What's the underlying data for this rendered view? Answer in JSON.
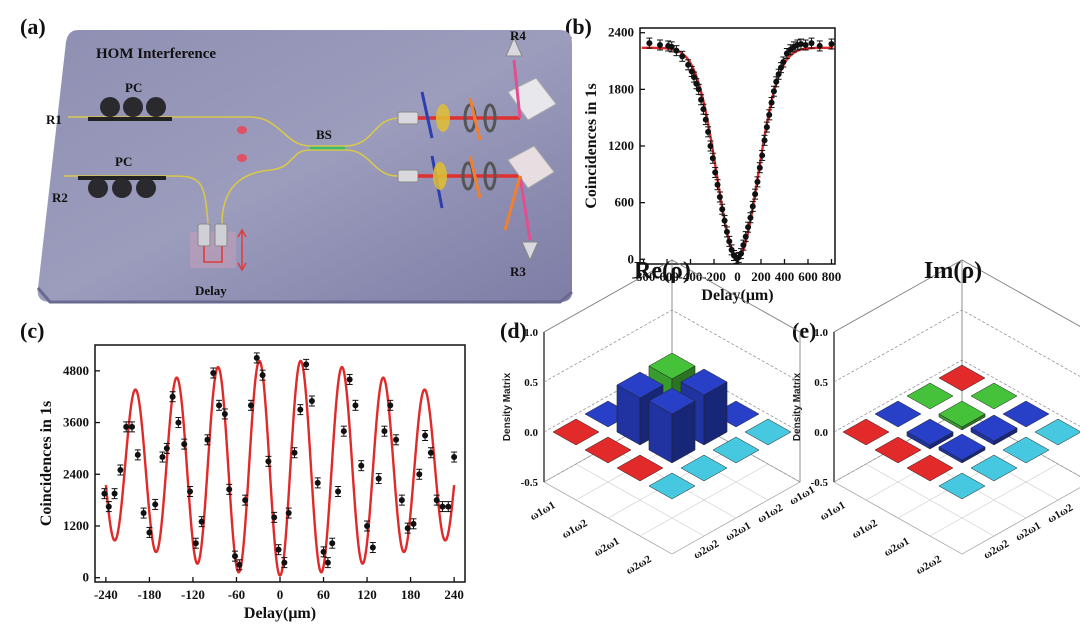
{
  "panels": {
    "a": {
      "label": "(a)",
      "title": "HOM Interference",
      "r1": "R1",
      "r2": "R2",
      "r3": "R3",
      "r4": "R4",
      "pc1": "PC",
      "pc2": "PC",
      "bs": "BS",
      "delay": "Delay"
    },
    "b": {
      "label": "(b)"
    },
    "c": {
      "label": "(c)"
    },
    "d": {
      "label": "(d)"
    },
    "e": {
      "label": "(e)"
    }
  },
  "chart_data": [
    {
      "id": "b",
      "type": "scatter",
      "title": "",
      "xlabel": "Delay(μm)",
      "ylabel": "Coincidences in 1s",
      "xlim": [
        -830,
        830
      ],
      "ylim": [
        -50,
        2450
      ],
      "xticks": [
        -800,
        -600,
        -400,
        -200,
        0,
        200,
        400,
        600,
        800
      ],
      "yticks": [
        0,
        600,
        1200,
        1800,
        2400
      ],
      "fit": {
        "type": "gaussian_dip",
        "baseline": 2240,
        "depth": 2230,
        "sigma": 175
      },
      "points": {
        "x": [
          -750,
          -660,
          -590,
          -560,
          -520,
          -470,
          -420,
          -390,
          -370,
          -350,
          -330,
          -310,
          -290,
          -270,
          -250,
          -230,
          -210,
          -190,
          -170,
          -150,
          -130,
          -110,
          -90,
          -70,
          -50,
          -30,
          -10,
          10,
          30,
          50,
          70,
          90,
          110,
          130,
          150,
          170,
          190,
          210,
          230,
          250,
          270,
          290,
          310,
          330,
          350,
          370,
          390,
          420,
          450,
          480,
          510,
          540,
          580,
          630,
          700,
          800
        ],
        "y": [
          2290,
          2270,
          2260,
          2250,
          2210,
          2150,
          2060,
          1990,
          1930,
          1860,
          1800,
          1690,
          1590,
          1480,
          1350,
          1200,
          1070,
          920,
          790,
          660,
          530,
          410,
          290,
          190,
          100,
          40,
          10,
          20,
          60,
          150,
          240,
          340,
          440,
          560,
          690,
          820,
          970,
          1100,
          1260,
          1400,
          1530,
          1660,
          1780,
          1880,
          1960,
          2030,
          2090,
          2180,
          2220,
          2250,
          2270,
          2280,
          2270,
          2290,
          2260,
          2280
        ]
      }
    },
    {
      "id": "c",
      "type": "scatter",
      "title": "",
      "xlabel": "Delay(μm)",
      "ylabel": "Coincidences in 1s",
      "xlim": [
        -255,
        255
      ],
      "ylim": [
        -100,
        5400
      ],
      "xticks": [
        -240,
        -180,
        -120,
        -60,
        0,
        60,
        120,
        180,
        240
      ],
      "yticks": [
        0,
        1200,
        2400,
        3600,
        4800
      ],
      "fit": {
        "type": "modulated_cosine",
        "mean": 2550,
        "period": 57
      },
      "points": {
        "x": [
          -242,
          -236,
          -228,
          -220,
          -212,
          -204,
          -196,
          -188,
          -180,
          -172,
          -162,
          -156,
          -148,
          -140,
          -132,
          -124,
          -116,
          -108,
          -100,
          -92,
          -84,
          -76,
          -70,
          -62,
          -56,
          -48,
          -40,
          -32,
          -24,
          -16,
          -8,
          -2,
          6,
          12,
          20,
          28,
          36,
          44,
          52,
          60,
          66,
          72,
          80,
          88,
          96,
          104,
          112,
          120,
          128,
          136,
          144,
          152,
          160,
          168,
          176,
          184,
          192,
          200,
          208,
          216,
          224,
          232,
          240
        ],
        "y": [
          1950,
          1650,
          1950,
          2500,
          3500,
          3500,
          2850,
          1500,
          1050,
          1700,
          2800,
          3000,
          4200,
          3600,
          3100,
          2000,
          800,
          1300,
          3200,
          4750,
          4000,
          3800,
          2050,
          500,
          300,
          1800,
          4000,
          5100,
          4700,
          2700,
          1400,
          650,
          350,
          1500,
          2900,
          3900,
          4950,
          4100,
          2200,
          600,
          350,
          800,
          2000,
          3400,
          4600,
          4000,
          2600,
          1200,
          700,
          2300,
          3400,
          4000,
          3200,
          1800,
          1150,
          1250,
          2400,
          3300,
          2900,
          1800,
          1650,
          1650,
          2800
        ]
      }
    },
    {
      "id": "d",
      "type": "bar3d",
      "title": "Re(ρ)",
      "zlabel": "Density Matrix",
      "zlim": [
        -0.5,
        1.0
      ],
      "zticks": [
        "1.0",
        "0.5",
        "0.0",
        "-0.5"
      ],
      "row_labels": [
        "ω1ω1",
        "ω1ω2",
        "ω2ω1",
        "ω2ω2"
      ],
      "col_labels": [
        "ω1ω1",
        "ω1ω2",
        "ω2ω1",
        "ω2ω2"
      ],
      "matrix": [
        [
          0.0,
          0.0,
          0.0,
          0.0
        ],
        [
          0.0,
          0.48,
          0.5,
          0.0
        ],
        [
          0.0,
          0.47,
          0.49,
          0.0
        ],
        [
          0.0,
          0.0,
          0.0,
          0.0
        ]
      ]
    },
    {
      "id": "e",
      "type": "bar3d",
      "title": "Im(ρ)",
      "zlabel": "Density Matrix",
      "zlim": [
        -0.5,
        1.0
      ],
      "zticks": [
        "1.0",
        "0.5",
        "0.0",
        "-0.5"
      ],
      "row_labels": [
        "ω1ω1",
        "ω1ω2",
        "ω2ω1",
        "ω2ω2"
      ],
      "col_labels": [
        "ω1ω1",
        "ω1ω2",
        "ω2ω1",
        "ω2ω2"
      ],
      "matrix": [
        [
          0.0,
          0.0,
          0.0,
          0.0
        ],
        [
          0.0,
          -0.03,
          0.04,
          0.0
        ],
        [
          0.0,
          -0.04,
          0.03,
          0.0
        ],
        [
          0.0,
          0.0,
          0.0,
          0.0
        ]
      ]
    }
  ]
}
